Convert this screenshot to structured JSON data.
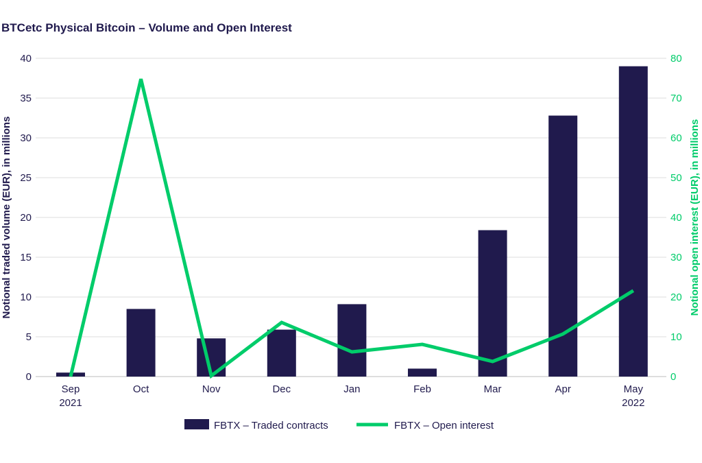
{
  "chart_data": {
    "type": "bar+line",
    "title": "BTCetc Physical Bitcoin – Volume and Open Interest",
    "categories": [
      "Sep",
      "Oct",
      "Nov",
      "Dec",
      "Jan",
      "Feb",
      "Mar",
      "Apr",
      "May"
    ],
    "category_sublabels": [
      "2021",
      "",
      "",
      "",
      "",
      "",
      "",
      "",
      "2022"
    ],
    "ylabel": "Notional traded volume (EUR), in millions",
    "y2label": "Notional open interest (EUR), in millions",
    "ylim": [
      0,
      40
    ],
    "y2lim": [
      0,
      80
    ],
    "yticks": [
      "0",
      "5",
      "10",
      "15",
      "20",
      "25",
      "30",
      "35",
      "40"
    ],
    "y2ticks": [
      "0",
      "10",
      "20",
      "30",
      "40",
      "50",
      "60",
      "70",
      "80"
    ],
    "grid": true,
    "legend_position": "bottom",
    "series": [
      {
        "name": "FBTX – Traded contracts",
        "type": "bar",
        "axis": "left",
        "color": "#201A4D",
        "values": [
          0.5,
          8.5,
          4.8,
          5.9,
          9.1,
          1.0,
          18.4,
          32.8,
          39.0
        ]
      },
      {
        "name": "FBTX – Open interest",
        "type": "line",
        "axis": "right",
        "color": "#00CC6A",
        "values": [
          0,
          74.8,
          0.2,
          13.6,
          6.2,
          8.1,
          3.8,
          10.7,
          21.6
        ]
      }
    ]
  }
}
